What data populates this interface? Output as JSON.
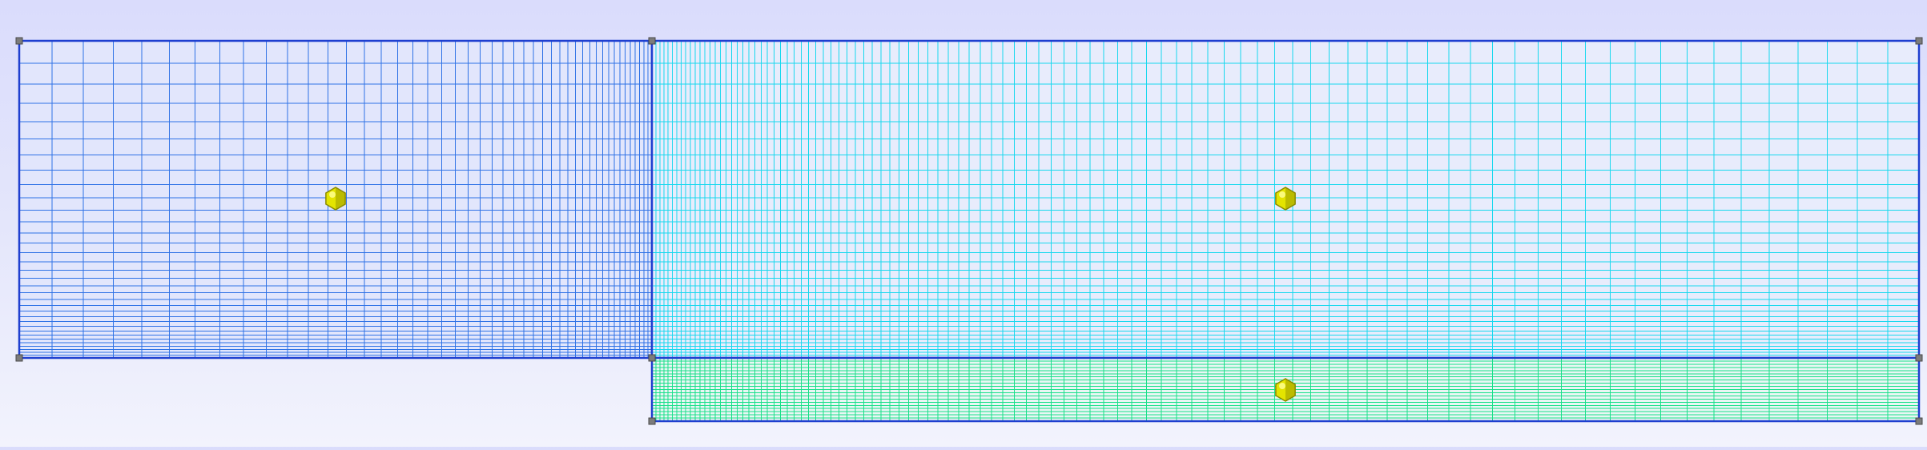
{
  "scene": {
    "background_top": "#dadcfc",
    "background_bottom": "#f2f3fd",
    "blocks": [
      {
        "id": "block-left",
        "line_color": "#2f72e6",
        "border_color": "#1f3fd0",
        "fill_color": "#e2e6fc",
        "cols": 46,
        "rows": 34,
        "x_grading": 0.12,
        "y_grading": 0.12
      },
      {
        "id": "block-right-top",
        "line_color": "#18d8ee",
        "border_color": "#1f3fd0",
        "fill_color": "#e8ecfc",
        "cols": 96,
        "rows": 34,
        "x_grading": 8.0,
        "y_grading": 0.12
      },
      {
        "id": "block-right-bottom",
        "line_color": "#19e08a",
        "border_color": "#1f3fd0",
        "fill_color": "#e9f6f4",
        "cols": 96,
        "rows": 20,
        "x_grading": 8.0,
        "y_grading": 1.0
      }
    ],
    "block_markers": {
      "color": "#e4e400",
      "shade_color": "#8a8a00",
      "icon": "hexagon-icon"
    },
    "vertex_markers": {
      "color": "#7c7c7c"
    }
  }
}
